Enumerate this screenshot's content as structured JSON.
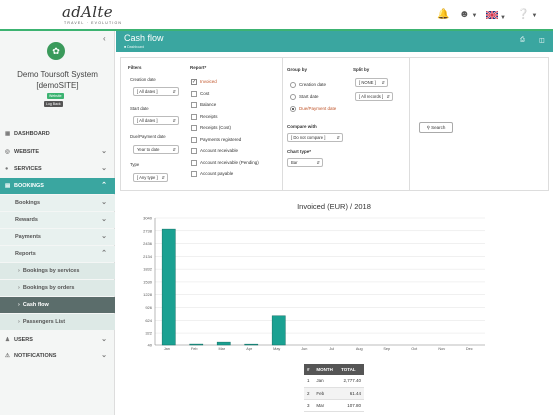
{
  "topbar": {
    "logo": "adAlte",
    "tagline": "TRAVEL · EVOLUTION",
    "bell_icon": "bell-icon",
    "user_icon": "user-icon",
    "flag_icon": "uk-flag-icon",
    "help_icon": "help-icon"
  },
  "sidebar": {
    "system_name": "Demo Toursoft System",
    "system_site": "[demoSITE]",
    "badge_website": "Website",
    "badge_logback": "Log Back",
    "nav": {
      "dashboard": "DASHBOARD",
      "website": "WEBSITE",
      "services": "SERVICES",
      "bookings": "BOOKINGS",
      "users": "USERS",
      "notifications": "NOTIFICATIONS"
    },
    "bookings_sub": {
      "bookings": "Bookings",
      "rewards": "Rewards",
      "payments": "Payments",
      "reports": "Reports"
    },
    "reports_sub": {
      "by_services": "Bookings by services",
      "by_orders": "Bookings by orders",
      "cash_flow": "Cash flow",
      "passengers": "Passengers List"
    }
  },
  "header": {
    "title": "Cash flow",
    "breadcrumb": "Dashboard"
  },
  "filters": {
    "title": "Filters",
    "creation_date_label": "Creation date",
    "creation_date_value": "[ All dates ]",
    "start_date_label": "Start date",
    "start_date_value": "[ All dates ]",
    "due_date_label": "Due/Payment date",
    "due_date_value": "Year to date",
    "type_label": "Type",
    "type_value": "[ Any type ]"
  },
  "report": {
    "title": "Report*",
    "options": [
      {
        "label": "Invoiced",
        "checked": true
      },
      {
        "label": "Cost",
        "checked": false
      },
      {
        "label": "Balance",
        "checked": false
      },
      {
        "label": "Receipts",
        "checked": false
      },
      {
        "label": "Receipts (Cost)",
        "checked": false
      },
      {
        "label": "Payments registered",
        "checked": false
      },
      {
        "label": "Account receivable",
        "checked": false
      },
      {
        "label": "Account receivable (Pending)",
        "checked": false
      },
      {
        "label": "Account payable",
        "checked": false
      }
    ]
  },
  "group_by": {
    "title": "Group by",
    "options": [
      {
        "label": "Creation date",
        "checked": false
      },
      {
        "label": "Start date",
        "checked": false
      },
      {
        "label": "Due/Payment date",
        "checked": true
      }
    ]
  },
  "split_by": {
    "title": "Split by",
    "value1": "[ NONE ]",
    "value2": "[ All records ]"
  },
  "compare_with": {
    "label": "Compare with",
    "value": "[ Do not compare ]"
  },
  "chart_type": {
    "label": "Chart type*",
    "value": "Bar"
  },
  "search_button": "Search",
  "chart_data": {
    "type": "bar",
    "title": "Invoiced (EUR) / 2018",
    "categories": [
      "Jan",
      "Feb",
      "Mar",
      "Apr",
      "May",
      "Jun",
      "Jul",
      "Aug",
      "Sep",
      "Oct",
      "Nov",
      "Dec"
    ],
    "values": [
      2777.4,
      61.44,
      107.8,
      35,
      730,
      0,
      0,
      0,
      0,
      0,
      0,
      0
    ],
    "yticks": [
      40,
      322,
      624,
      926,
      1228,
      1530,
      1832,
      2134,
      2436,
      2738,
      3040
    ],
    "ylim": [
      40,
      3040
    ],
    "color": "#1aa192",
    "grid": true
  },
  "table": {
    "headers": [
      "#",
      "MONTH",
      "TOTAL"
    ],
    "rows": [
      [
        "1",
        "Jan",
        "2,777.40"
      ],
      [
        "2",
        "Feb",
        "61.44"
      ],
      [
        "3",
        "Mar",
        "107.80"
      ]
    ]
  }
}
